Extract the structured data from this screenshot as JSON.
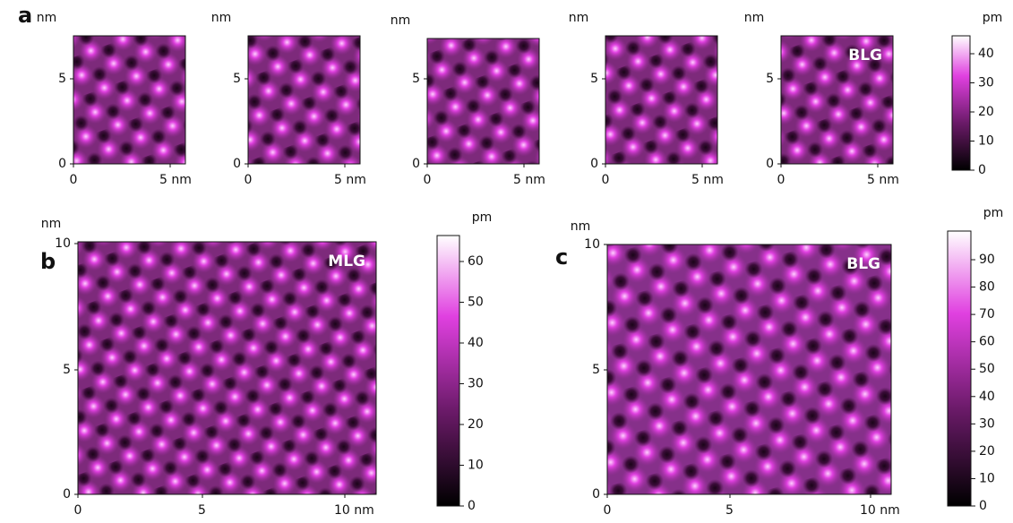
{
  "panels": [
    {
      "label": "a",
      "images": [
        {
          "y_unit": "nm",
          "y_ticks": [
            "0",
            "5"
          ],
          "x_ticks": [
            "0",
            "5 nm"
          ]
        },
        {
          "y_unit": "nm",
          "y_ticks": [
            "0",
            "5"
          ],
          "x_ticks": [
            "0",
            "5 nm"
          ]
        },
        {
          "y_unit": "nm",
          "y_ticks": [
            "0",
            "5"
          ],
          "x_ticks": [
            "0",
            "5 nm"
          ]
        },
        {
          "y_unit": "nm",
          "y_ticks": [
            "0",
            "5"
          ],
          "x_ticks": [
            "0",
            "5 nm"
          ]
        },
        {
          "y_unit": "nm",
          "y_ticks": [
            "0",
            "5"
          ],
          "x_ticks": [
            "0",
            "5 nm"
          ],
          "tag": "BLG"
        }
      ],
      "colorbar": {
        "unit": "pm",
        "ticks": [
          0,
          10,
          20,
          30,
          40
        ]
      }
    },
    {
      "label": "b",
      "images": [
        {
          "y_unit": "nm",
          "y_ticks": [
            "0",
            "5",
            "10"
          ],
          "x_ticks": [
            "0",
            "5",
            "10 nm"
          ],
          "tag": "MLG"
        }
      ],
      "colorbar": {
        "unit": "pm",
        "ticks": [
          0,
          10,
          20,
          30,
          40,
          50,
          60
        ]
      }
    },
    {
      "label": "c",
      "images": [
        {
          "y_unit": "nm",
          "y_ticks": [
            "0",
            "5",
            "10"
          ],
          "x_ticks": [
            "0",
            "5",
            "10 nm"
          ],
          "tag": "BLG"
        }
      ],
      "colorbar": {
        "unit": "pm",
        "ticks": [
          0,
          10,
          20,
          30,
          40,
          50,
          60,
          70,
          80,
          90
        ]
      }
    }
  ]
}
